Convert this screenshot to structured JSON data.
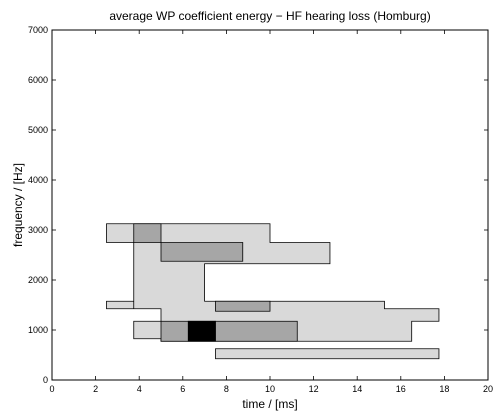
{
  "chart_data": {
    "type": "heatmap",
    "title": "average WP coefficient energy − HF hearing loss (Homburg)",
    "xlabel": "time / [ms]",
    "ylabel": "frequency / [Hz]",
    "xlim": [
      0,
      20
    ],
    "ylim": [
      0,
      7000
    ],
    "xticks": [
      0,
      2,
      4,
      6,
      8,
      10,
      12,
      14,
      16,
      18,
      20
    ],
    "yticks": [
      0,
      1000,
      2000,
      3000,
      4000,
      5000,
      6000,
      7000
    ],
    "grid": false,
    "legend": "none",
    "level_colors": {
      "low": "#d9d9d9",
      "medium": "#a6a6a6",
      "high": "#000000"
    },
    "regions": [
      {
        "level": "low",
        "polygon": [
          [
            2.5,
            3125
          ],
          [
            10.0,
            3125
          ],
          [
            10.0,
            2750
          ],
          [
            12.75,
            2750
          ],
          [
            12.75,
            2325
          ],
          [
            7.0,
            2325
          ],
          [
            7.0,
            1575
          ],
          [
            15.25,
            1575
          ],
          [
            15.25,
            1425
          ],
          [
            17.75,
            1425
          ],
          [
            17.75,
            1175
          ],
          [
            16.5,
            1175
          ],
          [
            16.5,
            775
          ],
          [
            5.0,
            775
          ],
          [
            5.0,
            825
          ],
          [
            3.75,
            825
          ],
          [
            3.75,
            1175
          ],
          [
            5.0,
            1175
          ],
          [
            5.0,
            1425
          ],
          [
            3.75,
            1425
          ],
          [
            3.75,
            1575
          ],
          [
            2.5,
            1575
          ],
          [
            2.5,
            1425
          ],
          [
            3.75,
            1425
          ],
          [
            3.75,
            2750
          ],
          [
            2.5,
            2750
          ]
        ]
      },
      {
        "level": "low",
        "polygon": [
          [
            7.5,
            625
          ],
          [
            17.75,
            625
          ],
          [
            17.75,
            425
          ],
          [
            7.5,
            425
          ]
        ]
      },
      {
        "level": "medium",
        "polygon": [
          [
            3.75,
            3125
          ],
          [
            5.0,
            3125
          ],
          [
            5.0,
            2750
          ],
          [
            3.75,
            2750
          ]
        ]
      },
      {
        "level": "medium",
        "polygon": [
          [
            5.0,
            2750
          ],
          [
            8.75,
            2750
          ],
          [
            8.75,
            2375
          ],
          [
            5.0,
            2375
          ]
        ]
      },
      {
        "level": "medium",
        "polygon": [
          [
            7.5,
            1575
          ],
          [
            10.0,
            1575
          ],
          [
            10.0,
            1375
          ],
          [
            7.5,
            1375
          ]
        ]
      },
      {
        "level": "medium",
        "polygon": [
          [
            5.0,
            1175
          ],
          [
            11.25,
            1175
          ],
          [
            11.25,
            775
          ],
          [
            5.0,
            775
          ]
        ]
      },
      {
        "level": "high",
        "polygon": [
          [
            6.25,
            1175
          ],
          [
            7.5,
            1175
          ],
          [
            7.5,
            775
          ],
          [
            6.25,
            775
          ]
        ]
      }
    ]
  }
}
